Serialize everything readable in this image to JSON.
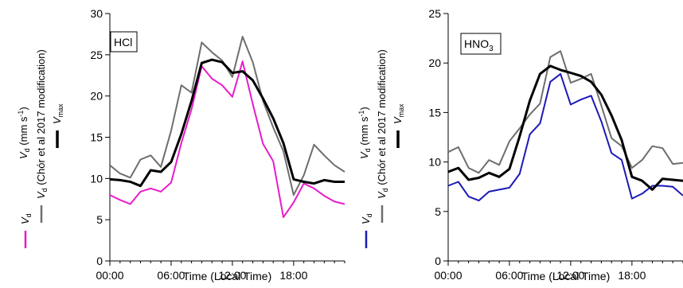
{
  "chart_data": [
    {
      "type": "line",
      "panel_label": "HCl",
      "xlabel": "Time (Local Time)",
      "x_tick_labels": [
        "00:00",
        "06:00",
        "12:00",
        "18:00"
      ],
      "x_ticks_hours": [
        0,
        6,
        12,
        18
      ],
      "xlim": [
        0,
        23
      ],
      "ylim": [
        0,
        30
      ],
      "y_ticks": [
        0,
        5,
        10,
        15,
        20,
        25,
        30
      ],
      "x": [
        0,
        1,
        2,
        3,
        4,
        5,
        6,
        7,
        8,
        9,
        10,
        11,
        12,
        13,
        14,
        15,
        16,
        17,
        18,
        19,
        20,
        21,
        22,
        23
      ],
      "series": [
        {
          "key": "vd",
          "color": "#e81cc9",
          "stroke": 2,
          "values": [
            8.0,
            7.4,
            6.9,
            8.4,
            8.8,
            8.4,
            9.5,
            14.3,
            18.4,
            23.6,
            22.1,
            21.3,
            19.9,
            24.2,
            19.0,
            14.2,
            12.1,
            5.3,
            7.1,
            9.4,
            8.8,
            7.9,
            7.2,
            6.9
          ]
        },
        {
          "key": "chor",
          "color": "#6e6e6e",
          "stroke": 2,
          "values": [
            11.6,
            10.6,
            10.1,
            12.3,
            12.8,
            11.4,
            15.8,
            21.3,
            20.4,
            26.5,
            25.3,
            24.3,
            22.3,
            27.2,
            24.1,
            19.4,
            16.2,
            13.3,
            8.0,
            10.4,
            14.1,
            12.8,
            11.6,
            10.8
          ]
        },
        {
          "key": "vmax",
          "color": "#000000",
          "stroke": 3,
          "values": [
            9.9,
            9.8,
            9.6,
            9.1,
            11.0,
            10.8,
            12.0,
            15.4,
            19.4,
            24.0,
            24.4,
            24.1,
            22.8,
            23.0,
            21.9,
            19.7,
            17.3,
            14.3,
            9.9,
            9.6,
            9.4,
            9.8,
            9.6,
            9.6
          ]
        }
      ],
      "legend": {
        "vd": {
          "symbol": "V",
          "subscript": "d",
          "suffix": ""
        },
        "chor": {
          "symbol": "V",
          "subscript": "d",
          "suffix": " (Chór et al 2017 modification)"
        },
        "vmax": {
          "symbol": "V",
          "subscript": "max",
          "suffix": ""
        }
      },
      "ylabel": {
        "symbol": "V",
        "subscript": "d",
        "unit_prefix": " (mm s",
        "unit_exp": "-1",
        "unit_suffix": ")"
      }
    },
    {
      "type": "line",
      "panel_label": "HNO",
      "panel_label_sub": "3",
      "xlabel": "Time (Local Time)",
      "x_tick_labels": [
        "00:00",
        "06:00",
        "12:00",
        "18:00"
      ],
      "x_ticks_hours": [
        0,
        6,
        12,
        18
      ],
      "xlim": [
        0,
        23
      ],
      "ylim": [
        0,
        25
      ],
      "y_ticks": [
        0,
        5,
        10,
        15,
        20,
        25
      ],
      "x": [
        0,
        1,
        2,
        3,
        4,
        5,
        6,
        7,
        8,
        9,
        10,
        11,
        12,
        13,
        14,
        15,
        16,
        17,
        18,
        19,
        20,
        21,
        22,
        23
      ],
      "series": [
        {
          "key": "vd",
          "color": "#1a1ab8",
          "stroke": 2,
          "values": [
            7.6,
            8.0,
            6.5,
            6.1,
            7.0,
            7.2,
            7.4,
            8.8,
            12.8,
            13.9,
            18.1,
            18.9,
            15.8,
            16.3,
            16.7,
            14.1,
            10.9,
            10.2,
            6.3,
            6.8,
            7.6,
            7.6,
            7.5,
            6.6
          ]
        },
        {
          "key": "chor",
          "color": "#6e6e6e",
          "stroke": 2,
          "values": [
            11.0,
            11.5,
            9.4,
            8.9,
            10.2,
            9.7,
            12.1,
            13.4,
            14.8,
            15.9,
            20.6,
            21.2,
            18.0,
            18.4,
            18.9,
            15.7,
            12.4,
            11.6,
            9.4,
            10.2,
            11.6,
            11.4,
            9.8,
            9.9
          ]
        },
        {
          "key": "vmax",
          "color": "#000000",
          "stroke": 3,
          "values": [
            9.0,
            9.4,
            8.2,
            8.4,
            8.9,
            8.5,
            9.3,
            12.6,
            16.2,
            18.9,
            19.7,
            19.3,
            19.0,
            18.7,
            18.1,
            16.8,
            14.7,
            12.2,
            8.5,
            8.1,
            7.2,
            8.3,
            8.2,
            8.1
          ]
        }
      ],
      "legend": {
        "vd": {
          "symbol": "V",
          "subscript": "d",
          "suffix": ""
        },
        "chor": {
          "symbol": "V",
          "subscript": "d",
          "suffix": " (Chór et al 2017 modification)"
        },
        "vmax": {
          "symbol": "V",
          "subscript": "max",
          "suffix": ""
        }
      },
      "ylabel": {
        "symbol": "V",
        "subscript": "d",
        "unit_prefix": " (mm s",
        "unit_exp": "-1",
        "unit_suffix": ")"
      }
    }
  ]
}
